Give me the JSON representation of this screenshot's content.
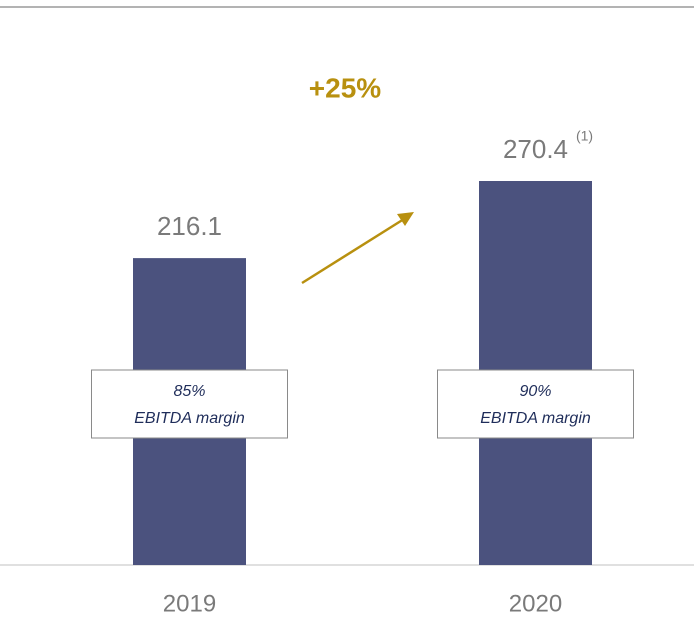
{
  "chart_data": {
    "type": "bar",
    "categories": [
      "2019",
      "2020"
    ],
    "values": [
      216.1,
      270.4
    ],
    "color": "#4b527e",
    "growth_label": "+25%",
    "footnote_mark": "(1)",
    "margins": [
      {
        "percent": "85%",
        "label": "EBITDA margin"
      },
      {
        "percent": "90%",
        "label": "EBITDA margin"
      }
    ]
  }
}
